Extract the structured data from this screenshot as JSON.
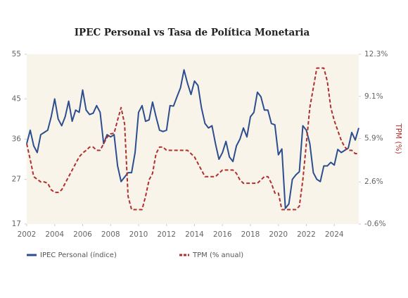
{
  "chart_data": {
    "type": "line",
    "title": "IPEC Personal vs Tasa de Política Monetaria",
    "y2label": "TPM (%)",
    "x": [
      2002,
      2002.25,
      2002.5,
      2002.75,
      2003,
      2003.25,
      2003.5,
      2003.75,
      2004,
      2004.25,
      2004.5,
      2004.75,
      2005,
      2005.25,
      2005.5,
      2005.75,
      2006,
      2006.25,
      2006.5,
      2006.75,
      2007,
      2007.25,
      2007.5,
      2007.75,
      2008,
      2008.25,
      2008.5,
      2008.75,
      2009,
      2009.25,
      2009.5,
      2009.75,
      2010,
      2010.25,
      2010.5,
      2010.75,
      2011,
      2011.25,
      2011.5,
      2011.75,
      2012,
      2012.25,
      2012.5,
      2012.75,
      2013,
      2013.25,
      2013.5,
      2013.75,
      2014,
      2014.25,
      2014.5,
      2014.75,
      2015,
      2015.25,
      2015.5,
      2015.75,
      2016,
      2016.25,
      2016.5,
      2016.75,
      2017,
      2017.25,
      2017.5,
      2017.75,
      2018,
      2018.25,
      2018.5,
      2018.75,
      2019,
      2019.25,
      2019.5,
      2019.75,
      2020,
      2020.25,
      2020.5,
      2020.75,
      2021,
      2021.25,
      2021.5,
      2021.75,
      2022,
      2022.25,
      2022.5,
      2022.75,
      2023,
      2023.25,
      2023.5,
      2023.75,
      2024,
      2024.25,
      2024.5,
      2024.75,
      2025,
      2025.25,
      2025.5,
      2025.75
    ],
    "series": [
      {
        "name": "IPEC Personal (índice)",
        "color": "#2c4d8e",
        "dash": false,
        "values": [
          35,
          38,
          34.5,
          33,
          37,
          37.5,
          38,
          41,
          45,
          40.5,
          39,
          41,
          44.5,
          40,
          42.5,
          42,
          47,
          42.5,
          41.5,
          41.8,
          43.5,
          42,
          35,
          37,
          36.5,
          37,
          30,
          26.5,
          27.5,
          28.5,
          28.5,
          33,
          42,
          43.5,
          40,
          40.3,
          44.3,
          41,
          38,
          37.7,
          38,
          43.5,
          43.4,
          45.5,
          47.5,
          51.5,
          48.5,
          46,
          49,
          48,
          43,
          39.5,
          38.5,
          39,
          35,
          31.5,
          33,
          35.5,
          32,
          31,
          34.5,
          36,
          38.5,
          36.5,
          41,
          42,
          46.5,
          45.5,
          42.5,
          42.5,
          39.5,
          39.2,
          32.5,
          33.8,
          20.5,
          21.5,
          27,
          28,
          28.7,
          39,
          38,
          35,
          28.5,
          27,
          26.5,
          30,
          30,
          30.8,
          30.2,
          33.7,
          33,
          33.5,
          34,
          37.5,
          35.8,
          38.5
        ]
      },
      {
        "name": "TPM (% anual)",
        "color": "#b0302e",
        "dash": true,
        "axis": "y2",
        "values": [
          5.5,
          4.3,
          3,
          2.8,
          2.6,
          2.6,
          2.5,
          2,
          1.8,
          1.8,
          2,
          2.5,
          3,
          3.5,
          4,
          4.5,
          4.8,
          5,
          5.25,
          5.25,
          5,
          5,
          5.5,
          6,
          6.25,
          6.3,
          7.3,
          8.25,
          7,
          1.5,
          0.5,
          0.5,
          0.5,
          0.5,
          1.5,
          2.75,
          3.25,
          4.75,
          5.25,
          5.25,
          5,
          5,
          5,
          5,
          5,
          5,
          5,
          4.75,
          4.5,
          4,
          3.5,
          3,
          3,
          3,
          3,
          3.25,
          3.5,
          3.5,
          3.5,
          3.5,
          3.25,
          2.75,
          2.5,
          2.5,
          2.5,
          2.5,
          2.5,
          2.75,
          3,
          3,
          2.5,
          1.75,
          1.75,
          0.5,
          0.5,
          0.5,
          0.5,
          0.5,
          0.75,
          2.75,
          5.5,
          8.25,
          9.75,
          11.25,
          11.25,
          11.25,
          10.25,
          8.25,
          7.25,
          6.5,
          5.75,
          5.25,
          5,
          5,
          4.75,
          4.75
        ]
      }
    ],
    "xlim": [
      2002,
      2025.75
    ],
    "xticks": [
      2002,
      2004,
      2006,
      2008,
      2010,
      2012,
      2014,
      2016,
      2018,
      2020,
      2022,
      2024
    ],
    "ylim": [
      17,
      55
    ],
    "yticks": [
      17,
      27,
      36,
      45,
      55
    ],
    "y2lim": [
      -0.6,
      12.3
    ],
    "y2ticks": [
      {
        "value": -0.6,
        "label": "-0.6%"
      },
      {
        "value": 2.6,
        "label": "2.6%"
      },
      {
        "value": 5.9,
        "label": "5.9%"
      },
      {
        "value": 9.1,
        "label": "9.1%"
      },
      {
        "value": 12.3,
        "label": "12.3%"
      }
    ],
    "legend": "bottom-left"
  }
}
